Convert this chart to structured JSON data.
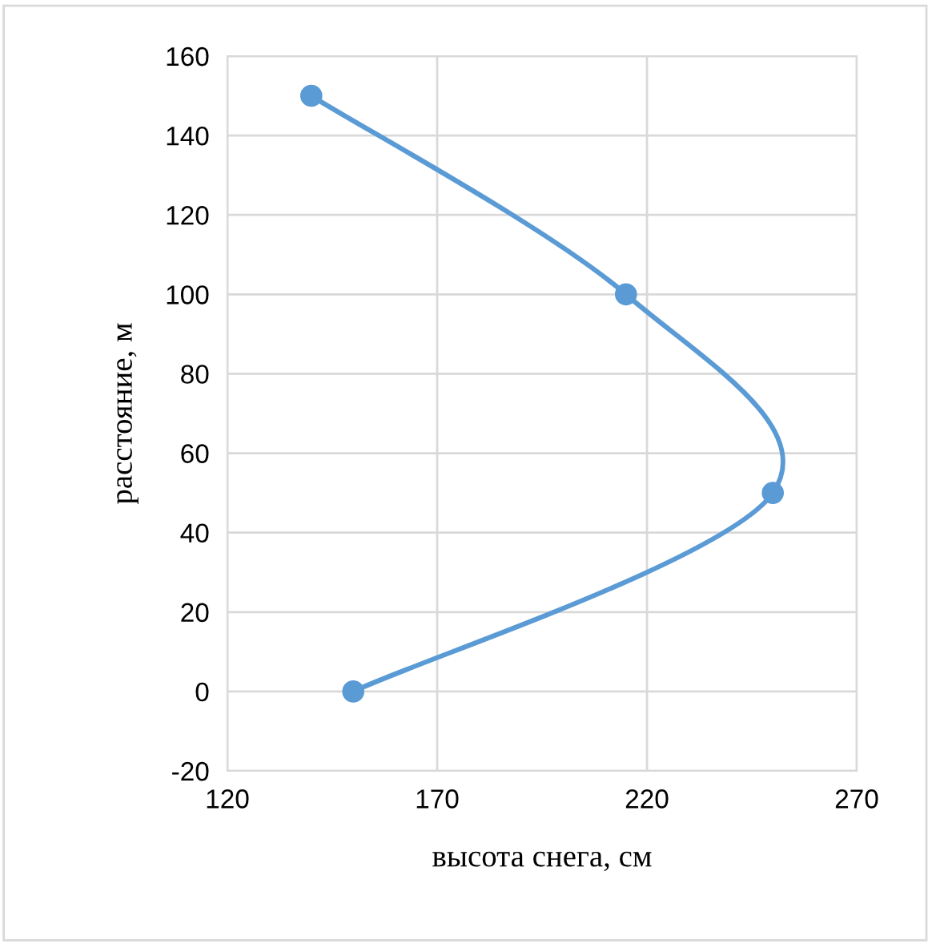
{
  "chart_data": {
    "type": "line",
    "xlabel": "высота снега, см",
    "ylabel": "расстояние, м",
    "series": [
      {
        "color": "#5b9bd5",
        "x": [
          140,
          215,
          250,
          150
        ],
        "values": [
          150,
          100,
          50,
          0
        ]
      }
    ],
    "xlim": [
      120,
      270
    ],
    "xticks": [
      120,
      170,
      220,
      270
    ],
    "ylim": [
      -20,
      160
    ],
    "yticks": [
      -20,
      0,
      20,
      40,
      60,
      80,
      100,
      120,
      140,
      160
    ],
    "grid": true,
    "marker": "circle",
    "line_style": "solid",
    "legend": false
  }
}
